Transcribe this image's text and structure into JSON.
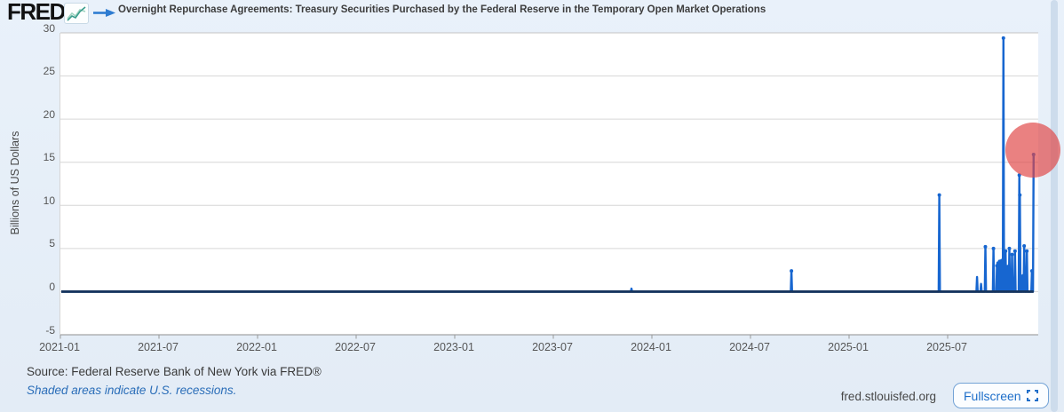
{
  "header": {
    "logo_text": "FRED",
    "logo_registered": "®"
  },
  "chart_data": {
    "type": "line",
    "title": "Overnight Repurchase Agreements: Treasury Securities Purchased by the Federal Reserve in the Temporary Open Market Operations",
    "ylabel": "Billions of US Dollars",
    "ylim": [
      -5,
      30
    ],
    "yticks": [
      -5,
      0,
      5,
      10,
      15,
      20,
      25,
      30
    ],
    "xticks": [
      "2021-01",
      "2021-07",
      "2022-01",
      "2022-07",
      "2023-01",
      "2023-07",
      "2024-01",
      "2024-07",
      "2025-01",
      "2025-07"
    ],
    "grid": "horizontal",
    "legend_position": "top",
    "baseline_value": 0,
    "series": [
      {
        "name": "Overnight Repurchase Agreements: Treasury Securities Purchased by the Federal Reserve in the Temporary Open Market Operations",
        "note": "Daily series flat at ~0 from 2021-01 through late 2024, with spikes listed below",
        "spikes": [
          {
            "date": "2023-11-24",
            "value": 0.35
          },
          {
            "date": "2024-09-16",
            "value": 2.4
          },
          {
            "date": "2025-06-16",
            "value": 11.2
          },
          {
            "date": "2025-08-25",
            "value": 1.7
          },
          {
            "date": "2025-09-02",
            "value": 0.9
          },
          {
            "date": "2025-09-10",
            "value": 5.2
          },
          {
            "date": "2025-09-25",
            "value": 5.0
          },
          {
            "date": "2025-10-01",
            "value": 3.0
          },
          {
            "date": "2025-10-03",
            "value": 3.3
          },
          {
            "date": "2025-10-06",
            "value": 3.5
          },
          {
            "date": "2025-10-08",
            "value": 3.2
          },
          {
            "date": "2025-10-10",
            "value": 3.6
          },
          {
            "date": "2025-10-13",
            "value": 29.4
          },
          {
            "date": "2025-10-17",
            "value": 4.7
          },
          {
            "date": "2025-10-21",
            "value": 2.9
          },
          {
            "date": "2025-10-24",
            "value": 5.0
          },
          {
            "date": "2025-10-29",
            "value": 4.3
          },
          {
            "date": "2025-11-04",
            "value": 4.7
          },
          {
            "date": "2025-11-12",
            "value": 13.5
          },
          {
            "date": "2025-11-13",
            "value": 11.2
          },
          {
            "date": "2025-11-18",
            "value": 1.9
          },
          {
            "date": "2025-11-21",
            "value": 5.3
          },
          {
            "date": "2025-11-26",
            "value": 4.7
          },
          {
            "date": "2025-12-05",
            "value": 2.4
          },
          {
            "date": "2025-12-08",
            "value": 15.9
          }
        ]
      }
    ],
    "x_range": [
      "2021-01-01",
      "2025-12-20"
    ],
    "highlight_annotation": {
      "shape": "circle",
      "date": "2025-12-08",
      "value": 16.4,
      "radius_px": 31
    }
  },
  "footer": {
    "source": "Source: Federal Reserve Bank of New York via FRED®",
    "recession_note": "Shaded areas indicate U.S. recessions.",
    "site": "fred.stlouisfed.org",
    "fullscreen_label": "Fullscreen"
  },
  "colors": {
    "series_line": "#1766d0",
    "baseline_line": "#17355e",
    "grid_line": "#d6d6d6",
    "axis_line": "#8f8f8f",
    "top_border": "#c4c4c4",
    "highlight_fill": "rgba(224,70,70,0.68)",
    "accent_blue": "#1d6ec9",
    "logo_icon_line": "#3a9e8c",
    "logo_icon_line2": "#9fd3c0"
  }
}
